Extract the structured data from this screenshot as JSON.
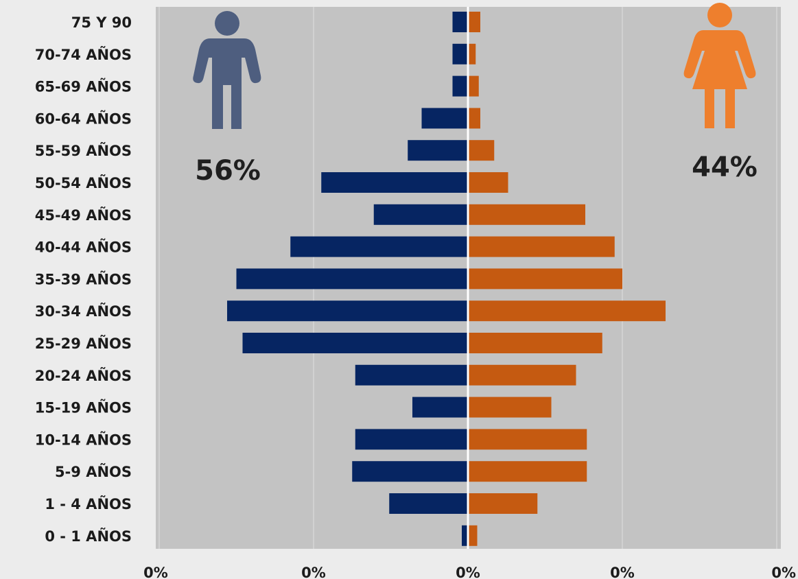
{
  "chart_data": {
    "type": "bar",
    "orientation": "horizontal",
    "categories": [
      "75 Y 90",
      "70-74 AÑOS",
      "65-69 AÑOS",
      "60-64 AÑOS",
      "55-59 AÑOS",
      "50-54 AÑOS",
      "45-49 AÑOS",
      "40-44 AÑOS",
      "35-39 AÑOS",
      "30-34 AÑOS",
      "25-29 AÑOS",
      "20-24 AÑOS",
      "15-19 AÑOS",
      "10-14 AÑOS",
      "5-9 AÑOS",
      "1 - 4 AÑOS",
      "0 - 1 AÑOS"
    ],
    "series": [
      {
        "values": [
          -0.1,
          -0.1,
          -0.1,
          -0.3,
          -0.39,
          -0.95,
          -0.61,
          -1.15,
          -1.5,
          -1.56,
          -1.46,
          -0.73,
          -0.36,
          -0.73,
          -0.75,
          -0.51,
          -0.04
        ],
        "color": "#062562"
      },
      {
        "values": [
          0.08,
          0.05,
          0.07,
          0.08,
          0.17,
          0.26,
          0.76,
          0.95,
          1.0,
          1.28,
          0.87,
          0.7,
          0.54,
          0.77,
          0.77,
          0.45,
          0.06
        ],
        "color": "#c55a11"
      }
    ],
    "x_ticks": [
      "0%",
      "0%",
      "0%",
      "0%",
      "0%"
    ],
    "xlim": [
      -2,
      2
    ],
    "annotations": {
      "male_pct": "56%",
      "female_pct": "44%"
    },
    "grid": true
  },
  "colors": {
    "male_icon": "#4e5e7f",
    "female_icon": "#ee7f2d",
    "plot_bg": "#c3c3c3"
  },
  "icons": {
    "male": "male-person-icon",
    "female": "female-person-icon"
  }
}
